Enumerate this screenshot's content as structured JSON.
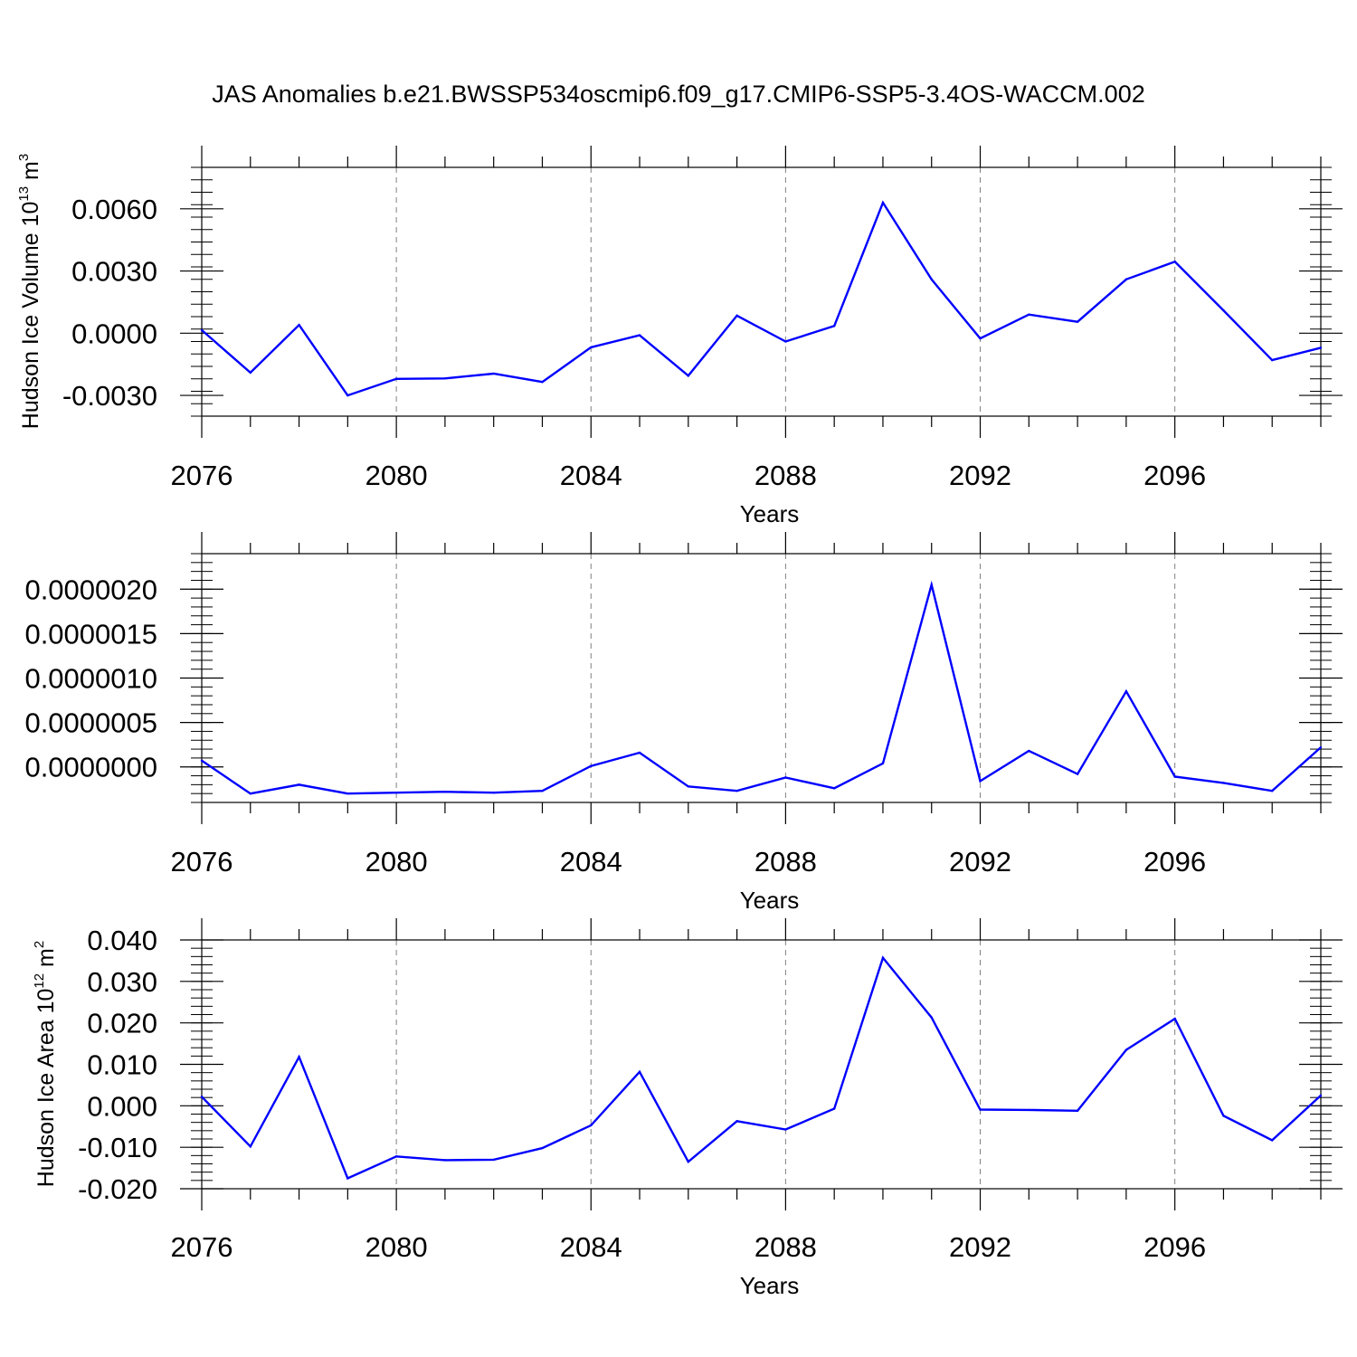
{
  "title": "JAS Anomalies b.e21.BWSSP534oscmip6.f09_g17.CMIP6-SSP5-3.4OS-WACCM.002",
  "colors": {
    "line": "#0000ff",
    "axis": "#000000",
    "grid": "#808080"
  },
  "chart_data": [
    {
      "type": "line",
      "xlabel": "Years",
      "ylabel": {
        "base": "Hudson Ice Volume 10",
        "exp": "13",
        "unit": " m",
        "unit_exp": "3"
      },
      "xlim": [
        2076,
        2099
      ],
      "ylim": [
        -0.004,
        0.008
      ],
      "xticks": [
        2076,
        2080,
        2084,
        2088,
        2092,
        2096
      ],
      "xtick_labels": [
        "2076",
        "2080",
        "2084",
        "2088",
        "2092",
        "2096"
      ],
      "yticks": [
        -0.003,
        0.0,
        0.003,
        0.006
      ],
      "ytick_labels": [
        "-0.0030",
        "0.0000",
        "0.0030",
        "0.0060"
      ],
      "yminor_step": 0.0006,
      "x": [
        2076,
        2077,
        2078,
        2079,
        2080,
        2081,
        2082,
        2083,
        2084,
        2085,
        2086,
        2087,
        2088,
        2089,
        2090,
        2091,
        2092,
        2093,
        2094,
        2095,
        2096,
        2097,
        2098,
        2099
      ],
      "values": [
        0.00015,
        -0.0019,
        0.0004,
        -0.003,
        -0.0022,
        -0.00218,
        -0.00195,
        -0.00235,
        -0.00068,
        -0.0001,
        -0.00205,
        0.00085,
        -0.0004,
        0.00035,
        0.0063,
        0.0026,
        -0.00025,
        0.0009,
        0.00055,
        0.0026,
        0.00345,
        0.0011,
        -0.0013,
        -0.0007
      ]
    },
    {
      "type": "line",
      "xlabel": "Years",
      "ylabel": null,
      "xlim": [
        2076,
        2099
      ],
      "ylim": [
        -4e-07,
        2.4e-06
      ],
      "xticks": [
        2076,
        2080,
        2084,
        2088,
        2092,
        2096
      ],
      "xtick_labels": [
        "2076",
        "2080",
        "2084",
        "2088",
        "2092",
        "2096"
      ],
      "yticks": [
        0.0,
        5e-07,
        1e-06,
        1.5e-06,
        2e-06
      ],
      "ytick_labels": [
        "0.0000000",
        "0.0000005",
        "0.0000010",
        "0.0000015",
        "0.0000020"
      ],
      "yminor_step": 1e-07,
      "x": [
        2076,
        2077,
        2078,
        2079,
        2080,
        2081,
        2082,
        2083,
        2084,
        2085,
        2086,
        2087,
        2088,
        2089,
        2090,
        2091,
        2092,
        2093,
        2094,
        2095,
        2096,
        2097,
        2098,
        2099
      ],
      "values": [
        7e-08,
        -3e-07,
        -2e-07,
        -3e-07,
        -2.9e-07,
        -2.8e-07,
        -2.9e-07,
        -2.7e-07,
        1e-08,
        1.6e-07,
        -2.2e-07,
        -2.7e-07,
        -1.2e-07,
        -2.4e-07,
        4e-08,
        2.05e-06,
        -1.6e-07,
        1.8e-07,
        -8e-08,
        8.5e-07,
        -1.1e-07,
        -1.8e-07,
        -2.7e-07,
        2.2e-07
      ]
    },
    {
      "type": "line",
      "xlabel": "Years",
      "ylabel": {
        "base": "Hudson Ice Area 10",
        "exp": "12",
        "unit": " m",
        "unit_exp": "2"
      },
      "xlim": [
        2076,
        2099
      ],
      "ylim": [
        -0.02,
        0.04
      ],
      "xticks": [
        2076,
        2080,
        2084,
        2088,
        2092,
        2096
      ],
      "xtick_labels": [
        "2076",
        "2080",
        "2084",
        "2088",
        "2092",
        "2096"
      ],
      "yticks": [
        -0.02,
        -0.01,
        0.0,
        0.01,
        0.02,
        0.03,
        0.04
      ],
      "ytick_labels": [
        "-0.020",
        "-0.010",
        "0.000",
        "0.010",
        "0.020",
        "0.030",
        "0.040"
      ],
      "yminor_step": 0.002,
      "x": [
        2076,
        2077,
        2078,
        2079,
        2080,
        2081,
        2082,
        2083,
        2084,
        2085,
        2086,
        2087,
        2088,
        2089,
        2090,
        2091,
        2092,
        2093,
        2094,
        2095,
        2096,
        2097,
        2098,
        2099
      ],
      "values": [
        0.0022,
        -0.0098,
        0.0118,
        -0.0175,
        -0.0122,
        -0.0131,
        -0.013,
        -0.0102,
        -0.0047,
        0.0082,
        -0.0135,
        -0.0037,
        -0.0057,
        -0.0007,
        0.0357,
        0.0213,
        -0.0009,
        -0.001,
        -0.0012,
        0.0135,
        0.021,
        -0.0024,
        -0.0083,
        0.0025
      ]
    }
  ]
}
